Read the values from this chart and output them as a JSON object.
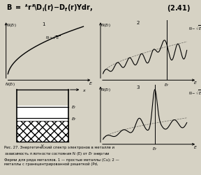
{
  "fig_width": 2.88,
  "fig_height": 2.53,
  "dpi": 100,
  "bg_color": "#d6d2c4",
  "title_text": "B = ^r^\\D",
  "eq_number": "(2.41)",
  "caption": "Рис. 27. Энергетический спектр электронов в металле и зависимость плотности состояния N (E) от EF энергии Ферми для ряда металлов. 1 — простые металлы (Cu); 2 — металлы с гранецентрированной решеткой (Pd,",
  "panel_labels": [
    "1",
    "2",
    "3"
  ],
  "axes_color": "black",
  "curve_color": "black",
  "hatch_color": "black"
}
